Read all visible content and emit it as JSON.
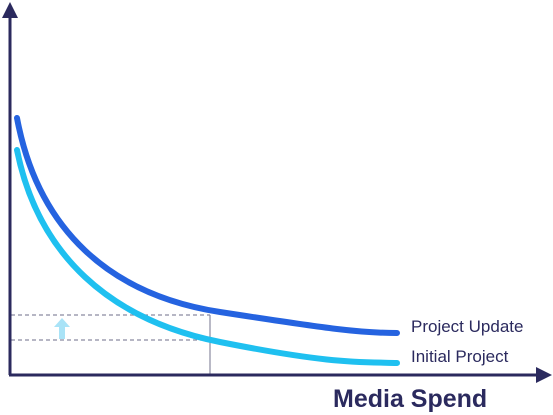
{
  "axis": {
    "x_label": "Media Spend"
  },
  "curves": [
    {
      "label": "Project Update"
    },
    {
      "label": "Initial Project"
    }
  ]
}
